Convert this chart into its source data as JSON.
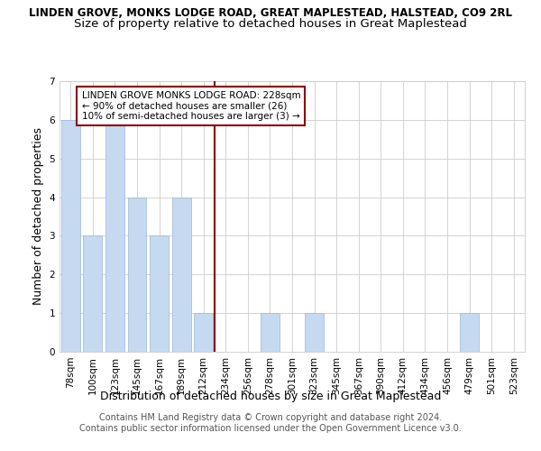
{
  "title": "LINDEN GROVE, MONKS LODGE ROAD, GREAT MAPLESTEAD, HALSTEAD, CO9 2RL",
  "subtitle": "Size of property relative to detached houses in Great Maplestead",
  "xlabel": "Distribution of detached houses by size in Great Maplestead",
  "ylabel": "Number of detached properties",
  "categories": [
    "78sqm",
    "100sqm",
    "123sqm",
    "145sqm",
    "167sqm",
    "189sqm",
    "212sqm",
    "234sqm",
    "256sqm",
    "278sqm",
    "301sqm",
    "323sqm",
    "345sqm",
    "367sqm",
    "390sqm",
    "412sqm",
    "434sqm",
    "456sqm",
    "479sqm",
    "501sqm",
    "523sqm"
  ],
  "values": [
    6,
    3,
    6,
    4,
    3,
    4,
    1,
    0,
    0,
    1,
    0,
    1,
    0,
    0,
    0,
    0,
    0,
    0,
    1,
    0,
    0
  ],
  "bar_color": "#c5d9f1",
  "bar_edge_color": "#9ab7d9",
  "vline_color": "#8b0000",
  "vline_x_index": 7,
  "annotation_text": "LINDEN GROVE MONKS LODGE ROAD: 228sqm\n← 90% of detached houses are smaller (26)\n10% of semi-detached houses are larger (3) →",
  "annotation_box_color": "#ffffff",
  "annotation_box_edge_color": "#8b0000",
  "ylim": [
    0,
    7
  ],
  "yticks": [
    0,
    1,
    2,
    3,
    4,
    5,
    6,
    7
  ],
  "background_color": "#ffffff",
  "grid_color": "#cccccc",
  "footer_line1": "Contains HM Land Registry data © Crown copyright and database right 2024.",
  "footer_line2": "Contains public sector information licensed under the Open Government Licence v3.0.",
  "title_fontsize": 8.5,
  "subtitle_fontsize": 9.5,
  "xlabel_fontsize": 9,
  "ylabel_fontsize": 9,
  "tick_fontsize": 7.5,
  "annotation_fontsize": 7.5,
  "footer_fontsize": 7
}
